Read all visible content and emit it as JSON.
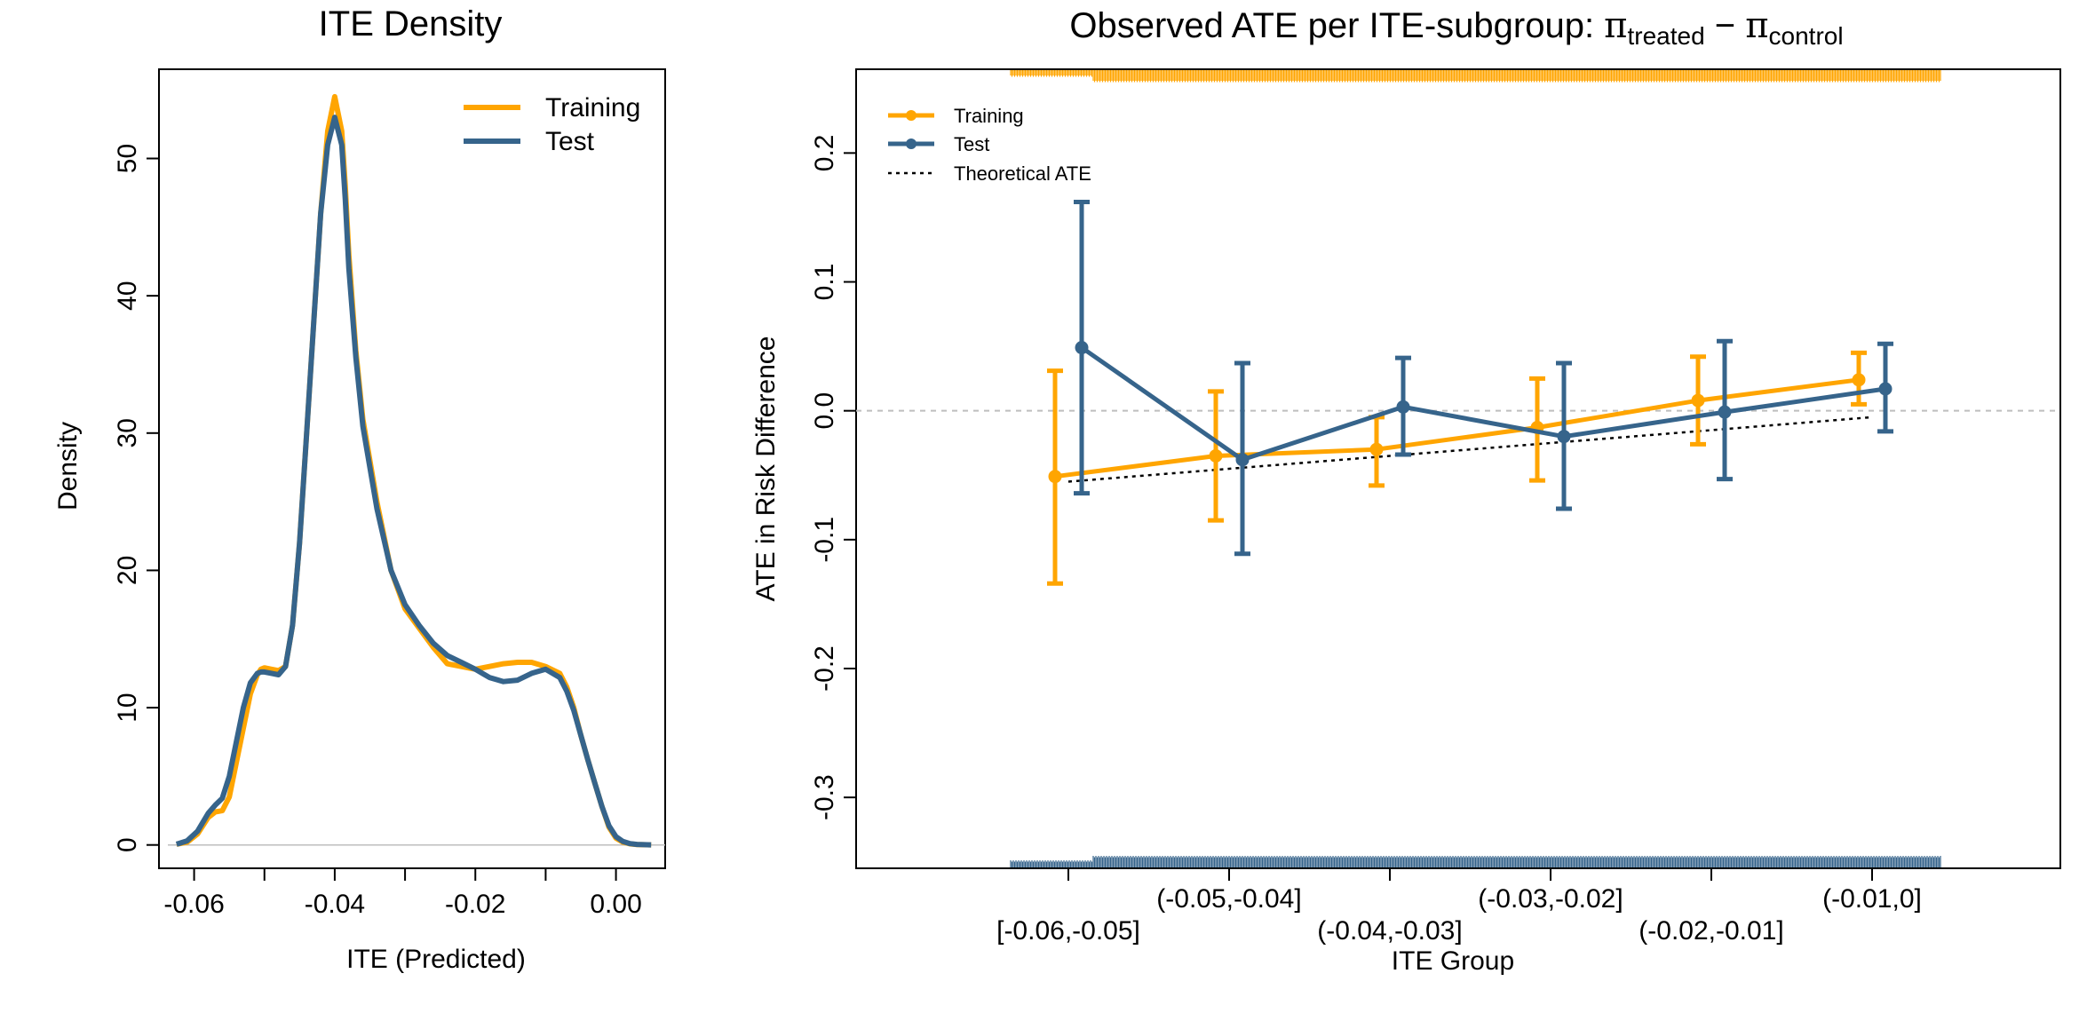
{
  "colors": {
    "training": "#FFA500",
    "test": "#36648B",
    "reference": "#BEBEBE",
    "theory": "#000000"
  },
  "chart_data": [
    {
      "type": "line",
      "title": "ITE Density",
      "xlabel": "ITE (Predicted)",
      "ylabel": "Density",
      "xlim": [
        -0.065,
        0.007
      ],
      "ylim": [
        -1.7,
        56.5
      ],
      "xticks": [
        -0.06,
        -0.04,
        -0.02,
        0.0
      ],
      "xtick_labels": [
        "-0.06",
        "-0.04",
        "-0.02",
        "0.00"
      ],
      "yticks": [
        0,
        10,
        20,
        30,
        40,
        50
      ],
      "ytick_labels": [
        "0",
        "10",
        "20",
        "30",
        "40",
        "50"
      ],
      "legend": {
        "position": "top-right"
      },
      "series": [
        {
          "name": "Training",
          "x": [
            -0.0625,
            -0.061,
            -0.0595,
            -0.058,
            -0.057,
            -0.056,
            -0.055,
            -0.054,
            -0.053,
            -0.052,
            -0.051,
            -0.0505,
            -0.05,
            -0.049,
            -0.048,
            -0.047,
            -0.046,
            -0.045,
            -0.044,
            -0.043,
            -0.042,
            -0.041,
            -0.04,
            -0.039,
            -0.0385,
            -0.038,
            -0.037,
            -0.036,
            -0.035,
            -0.034,
            -0.032,
            -0.03,
            -0.028,
            -0.026,
            -0.024,
            -0.022,
            -0.02,
            -0.018,
            -0.016,
            -0.014,
            -0.012,
            -0.01,
            -0.008,
            -0.007,
            -0.006,
            -0.005,
            -0.004,
            -0.003,
            -0.002,
            -0.001,
            0.0,
            0.001,
            0.002,
            0.003,
            0.005
          ],
          "y": [
            0.05,
            0.2,
            0.8,
            2.0,
            2.4,
            2.5,
            3.5,
            6.0,
            8.5,
            11.0,
            12.4,
            12.8,
            12.9,
            12.8,
            12.7,
            13.0,
            16.0,
            22.0,
            30.0,
            38.0,
            46.0,
            52.0,
            54.5,
            52.0,
            48.0,
            43.0,
            36.0,
            31.0,
            28.0,
            25.0,
            20.0,
            17.2,
            15.8,
            14.4,
            13.2,
            13.0,
            12.8,
            13.0,
            13.2,
            13.3,
            13.3,
            13.0,
            12.5,
            11.5,
            10.0,
            8.0,
            6.2,
            4.5,
            2.8,
            1.3,
            0.5,
            0.2,
            0.08,
            0.03,
            0.01
          ]
        },
        {
          "name": "Test",
          "x": [
            -0.0625,
            -0.061,
            -0.0595,
            -0.058,
            -0.057,
            -0.056,
            -0.055,
            -0.054,
            -0.053,
            -0.052,
            -0.051,
            -0.0505,
            -0.05,
            -0.049,
            -0.048,
            -0.047,
            -0.046,
            -0.045,
            -0.044,
            -0.043,
            -0.042,
            -0.041,
            -0.04,
            -0.039,
            -0.0385,
            -0.038,
            -0.037,
            -0.036,
            -0.035,
            -0.034,
            -0.032,
            -0.03,
            -0.028,
            -0.026,
            -0.024,
            -0.022,
            -0.02,
            -0.018,
            -0.016,
            -0.014,
            -0.012,
            -0.01,
            -0.008,
            -0.007,
            -0.006,
            -0.005,
            -0.004,
            -0.003,
            -0.002,
            -0.001,
            0.0,
            0.001,
            0.002,
            0.003,
            0.005
          ],
          "y": [
            0.05,
            0.3,
            1.0,
            2.3,
            2.9,
            3.4,
            5.0,
            7.5,
            10.0,
            11.8,
            12.5,
            12.6,
            12.6,
            12.5,
            12.4,
            13.0,
            16.0,
            22.0,
            30.0,
            38.0,
            46.0,
            51.0,
            53.0,
            51.0,
            47.0,
            42.0,
            35.5,
            30.5,
            27.5,
            24.5,
            20.0,
            17.5,
            16.0,
            14.7,
            13.8,
            13.3,
            12.8,
            12.2,
            11.9,
            12.0,
            12.5,
            12.8,
            12.2,
            11.2,
            9.8,
            8.0,
            6.2,
            4.5,
            2.8,
            1.4,
            0.6,
            0.25,
            0.1,
            0.04,
            0.01
          ]
        }
      ]
    },
    {
      "type": "line",
      "title": "Observed ATE per ITE-subgroup: ",
      "title_math": {
        "sym": "π",
        "sub1": "treated",
        "minus": " − ",
        "sub2": "control"
      },
      "xlabel": "ITE Group",
      "ylabel": "ATE in Risk Difference",
      "ylim": [
        -0.355,
        0.265
      ],
      "yticks": [
        -0.3,
        -0.2,
        -0.1,
        0.0,
        0.1,
        0.2
      ],
      "ytick_labels": [
        "-0.3",
        "-0.2",
        "-0.1",
        "0.0",
        "0.1",
        "0.2"
      ],
      "categories": [
        "[-0.06,-0.05]",
        "(-0.05,-0.04]",
        "(-0.04,-0.03]",
        "(-0.03,-0.02]",
        "(-0.02,-0.01]",
        "(-0.01,0]"
      ],
      "reference_line": 0.0,
      "legend": {
        "position": "top-left",
        "entries": [
          "Training",
          "Test",
          "Theoretical ATE"
        ]
      },
      "series": [
        {
          "name": "Training",
          "values": [
            -0.051,
            -0.035,
            -0.03,
            -0.013,
            0.008,
            0.024
          ],
          "lower": [
            -0.134,
            -0.085,
            -0.058,
            -0.054,
            -0.026,
            0.005
          ],
          "upper": [
            0.031,
            0.015,
            -0.005,
            0.025,
            0.042,
            0.045
          ]
        },
        {
          "name": "Test",
          "values": [
            0.049,
            -0.038,
            0.003,
            -0.02,
            -0.001,
            0.017
          ],
          "lower": [
            -0.064,
            -0.111,
            -0.034,
            -0.076,
            -0.053,
            -0.016
          ],
          "upper": [
            0.162,
            0.037,
            0.041,
            0.037,
            0.054,
            0.052
          ]
        },
        {
          "name": "Theoretical ATE",
          "values": [
            -0.055,
            -0.045,
            -0.035,
            -0.025,
            -0.015,
            -0.005
          ]
        }
      ]
    }
  ]
}
